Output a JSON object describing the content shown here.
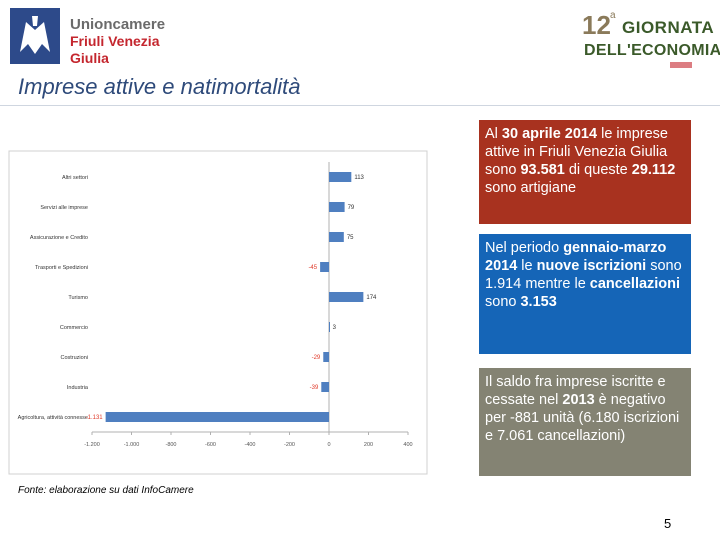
{
  "header": {
    "logo_line1": "Unioncamere",
    "logo_line2": "Friuli Venezia Giulia",
    "event_number": "12",
    "event_sup": "a",
    "event_line1": "GIORNATA",
    "event_line2": "DELL'ECONOMIA"
  },
  "page_title": "Imprese attive e natimortalità",
  "chart_data": {
    "type": "bar",
    "orientation": "horizontal",
    "categories": [
      "Altri settori",
      "Servizi alle imprese",
      "Assicurazione e Credito",
      "Trasporti e Spedizioni",
      "Turismo",
      "Commercio",
      "Costruzioni",
      "Industria",
      "Agricoltura, attività connesse"
    ],
    "values": [
      113,
      79,
      75,
      -45,
      174,
      3,
      -29,
      -39,
      -1131
    ],
    "value_labels": [
      "113",
      "79",
      "75",
      "-45",
      "174",
      "3",
      "-29",
      "-39",
      "-1.131"
    ],
    "xticks": [
      "-1.200",
      "-1.000",
      "-800",
      "-600",
      "-400",
      "-200",
      "0",
      "200",
      "400"
    ],
    "xlim": [
      -1200,
      400
    ],
    "colors": {
      "bar": "#4f7fc0",
      "negative_label": "#e03a2a",
      "positive_label": "#333333"
    }
  },
  "boxes": {
    "red": {
      "color": "#a8321f",
      "parts": [
        {
          "t": "Al ",
          "b": false
        },
        {
          "t": "30 aprile 2014",
          "b": true
        },
        {
          "t": " le imprese attive in Friuli Venezia Giulia sono ",
          "b": false
        },
        {
          "t": "93.581",
          "b": true
        },
        {
          "t": " di queste ",
          "b": false
        },
        {
          "t": "29.112",
          "b": true
        },
        {
          "t": " sono artigiane",
          "b": false
        }
      ]
    },
    "blue": {
      "color": "#1565b7",
      "parts": [
        {
          "t": "Nel periodo ",
          "b": false
        },
        {
          "t": "gennaio-marzo 2014",
          "b": true
        },
        {
          "t": " le ",
          "b": false
        },
        {
          "t": "nuove  iscrizioni",
          "b": true
        },
        {
          "t": " sono 1.914 mentre  le ",
          "b": false
        },
        {
          "t": "cancellazioni",
          "b": true
        },
        {
          "t": " sono ",
          "b": false
        },
        {
          "t": "3.153",
          "b": true
        }
      ]
    },
    "gray": {
      "color": "#848373",
      "parts": [
        {
          "t": "Il saldo fra imprese iscritte e cessate nel ",
          "b": false
        },
        {
          "t": "2013",
          "b": true
        },
        {
          "t": " è negativo per -881 unità (6.180 iscrizioni e 7.061 cancellazioni)",
          "b": false
        }
      ]
    }
  },
  "source": "Fonte: elaborazione su dati InfoCamere",
  "page_number": "5"
}
